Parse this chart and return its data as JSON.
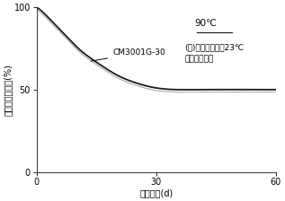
{
  "xlabel": "浸漯日数(d)",
  "ylabel": "引張強さ保持率(%)",
  "xlim": [
    0,
    60
  ],
  "ylim": [
    0,
    100
  ],
  "xticks": [
    0,
    30,
    60
  ],
  "yticks": [
    0,
    50,
    100
  ],
  "line_color1": "#1a1a1a",
  "line_color2": "#888888",
  "label_text": "CM3001G-30",
  "temp_text": "90℃",
  "note_line1": "(注)吸水したまま23℃",
  "note_line2": "で測定した。",
  "curve_x": [
    0,
    2,
    4,
    6,
    8,
    10,
    13,
    16,
    20,
    25,
    30,
    35,
    40,
    50,
    60
  ],
  "curve_y": [
    100,
    96,
    91,
    86,
    81,
    76,
    70,
    65,
    59,
    54,
    51,
    50,
    50,
    50,
    50
  ],
  "background_color": "#ffffff",
  "fontsize_axis_label": 7,
  "fontsize_tick": 7,
  "fontsize_label": 6.5,
  "fontsize_temp": 7.5,
  "fontsize_note": 6.5
}
